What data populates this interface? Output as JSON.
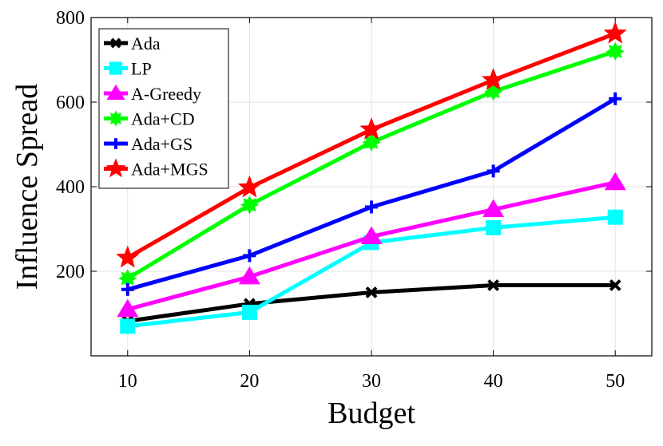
{
  "chart_data": {
    "type": "line",
    "title": "",
    "xlabel": "Budget",
    "ylabel": "Influence Spread",
    "x": [
      10,
      20,
      30,
      40,
      50
    ],
    "xlim": [
      7,
      53
    ],
    "ylim": [
      0,
      800
    ],
    "xticks": [
      10,
      20,
      30,
      40,
      50
    ],
    "yticks": [
      200,
      400,
      600,
      800
    ],
    "grid": true,
    "legend_position": "top-left",
    "series": [
      {
        "name": "Ada",
        "color": "#000000",
        "marker": "x",
        "values": [
          82,
          123,
          150,
          167,
          167
        ]
      },
      {
        "name": "LP",
        "color": "#00ffff",
        "marker": "square",
        "values": [
          70,
          103,
          268,
          303,
          328
        ]
      },
      {
        "name": "A-Greedy",
        "color": "#ff00ff",
        "marker": "triangle",
        "values": [
          110,
          187,
          282,
          346,
          410
        ]
      },
      {
        "name": "Ada+CD",
        "color": "#00ff00",
        "marker": "star-burst",
        "values": [
          183,
          357,
          505,
          625,
          720
        ]
      },
      {
        "name": "Ada+GS",
        "color": "#0000ff",
        "marker": "plus",
        "values": [
          157,
          237,
          352,
          437,
          608
        ]
      },
      {
        "name": "Ada+MGS",
        "color": "#ff0000",
        "marker": "star",
        "values": [
          232,
          398,
          535,
          652,
          762
        ]
      }
    ]
  }
}
